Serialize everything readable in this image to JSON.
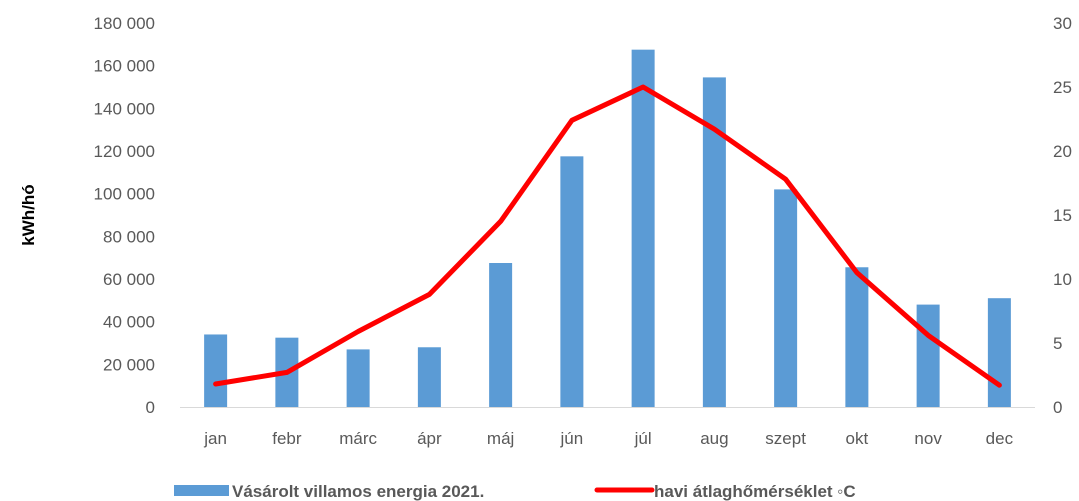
{
  "chart_data": {
    "type": "bar",
    "categories": [
      "jan",
      "febr",
      "márc",
      "ápr",
      "máj",
      "jún",
      "júl",
      "aug",
      "szept",
      "okt",
      "nov",
      "dec"
    ],
    "series": [
      {
        "name": "Vásárolt villamos energia 2021.",
        "type": "bar",
        "axis": "left",
        "color": "#5B9BD5",
        "values": [
          34000,
          32500,
          27000,
          28000,
          67500,
          117500,
          167500,
          154500,
          102000,
          65500,
          48000,
          51000
        ]
      },
      {
        "name": "havi átlaghőmérséklet ◦C",
        "type": "line",
        "axis": "right",
        "color": "#FF0000",
        "values": [
          1.8,
          2.7,
          5.9,
          8.8,
          14.5,
          22.4,
          25.0,
          21.7,
          17.8,
          10.5,
          5.6,
          1.7
        ]
      }
    ],
    "ylabel": "kWh/hó",
    "ylim": [
      0,
      180000
    ],
    "yticks": [
      "0",
      "20 000",
      "40 000",
      "60 000",
      "80 000",
      "100 000",
      "120 000",
      "140 000",
      "160 000",
      "180 000"
    ],
    "y2lim": [
      0,
      30
    ],
    "y2ticks": [
      "0",
      "5",
      "10",
      "15",
      "20",
      "25",
      "30"
    ],
    "grid": false,
    "legend": "bottom"
  }
}
